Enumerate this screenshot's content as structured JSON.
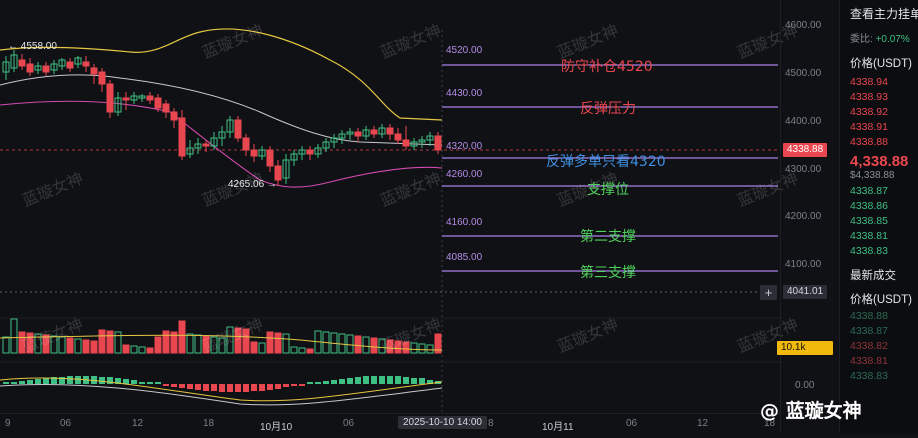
{
  "chart": {
    "high_marker": "← 4558.00",
    "low_marker": "4265.06 →",
    "watermark_text": "蓝璇女神",
    "levels": [
      {
        "price": "4520.00",
        "label": "防守补仓4520",
        "color": "#e9474f"
      },
      {
        "price": "4430.00",
        "label": "反弹压力",
        "color": "#e9474f"
      },
      {
        "price": "4320.00",
        "label": "反弹多单只看4320",
        "color": "#3d8fe0"
      },
      {
        "price": "4260.00",
        "label": "支撑位",
        "color": "#4fd25c"
      },
      {
        "price": "4160.00",
        "label": "第二支撑",
        "color": "#4fd25c"
      },
      {
        "price": "4085.00",
        "label": "第三支撑",
        "color": "#4fd25c"
      }
    ]
  },
  "price_axis": {
    "ticks": [
      "4600.00",
      "4500.00",
      "4400.00",
      "4300.00",
      "4200.00",
      "4100.00"
    ],
    "current_price_tag": "4338.88",
    "crosshair_price_tag": "4041.01",
    "volume_tag": "10.1k",
    "macd_tick": "0.00"
  },
  "time_axis": {
    "ticks": [
      "9",
      "06",
      "12",
      "18",
      "10月10",
      "06",
      "8",
      "10月11",
      "06",
      "12",
      "18"
    ],
    "crosshair_time": "2025-10-10 14:00"
  },
  "orderbook": {
    "title": "查看主力挂单",
    "change_label": "委比:",
    "change_value": "+0.07%",
    "price_header": "价格(USDT)",
    "asks": [
      "4338.94",
      "4338.93",
      "4338.92",
      "4338.91",
      "4338.88"
    ],
    "last_price": "4,338.88",
    "last_price_sub": "$4,338.88",
    "bids": [
      "4338.87",
      "4338.86",
      "4338.85",
      "4338.81",
      "4338.83"
    ],
    "trades_header": "最新成交",
    "trades_price_header": "价格(USDT)",
    "trades": [
      "4338.88",
      "4338.87",
      "4338.82",
      "4338.81",
      "4338.83"
    ]
  },
  "brand": {
    "logo_text": "@ 蓝璇女神"
  },
  "colors": {
    "up": "#3fbf84",
    "down": "#e9474f",
    "level_line": "#a680e6",
    "background": "#101114"
  }
}
